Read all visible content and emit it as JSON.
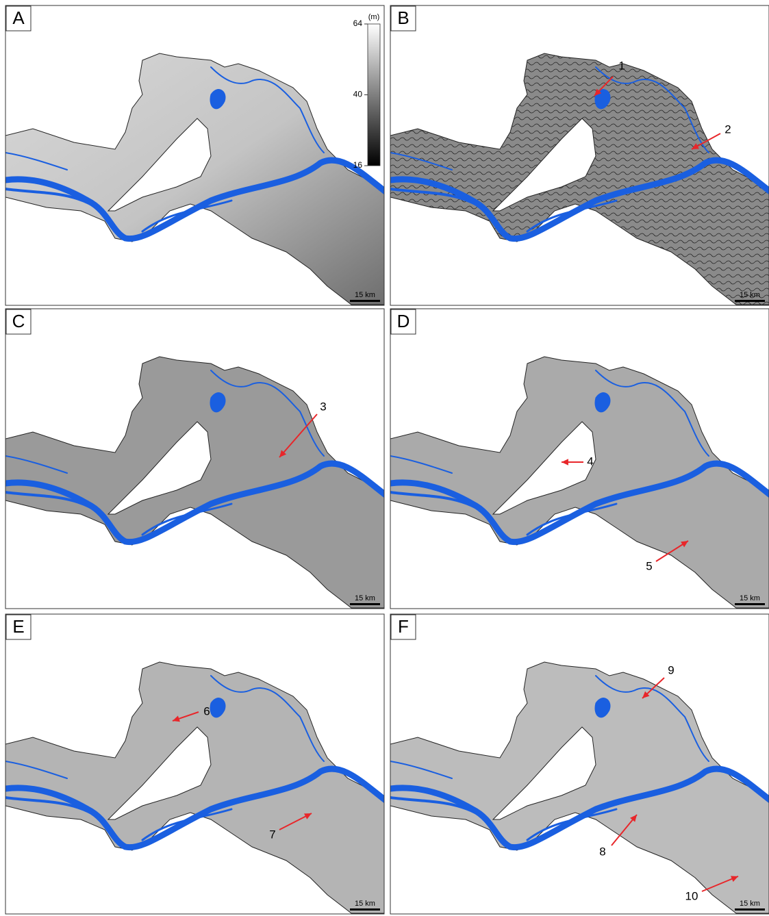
{
  "panels": [
    {
      "label": "A",
      "scale_bar": "15 km",
      "annotations": []
    },
    {
      "label": "B",
      "scale_bar": "15 km",
      "annotations": [
        {
          "label": "1"
        },
        {
          "label": "2"
        }
      ]
    },
    {
      "label": "C",
      "scale_bar": "15 km",
      "annotations": [
        {
          "label": "3"
        }
      ]
    },
    {
      "label": "D",
      "scale_bar": "15 km",
      "annotations": [
        {
          "label": "4"
        },
        {
          "label": "5"
        }
      ]
    },
    {
      "label": "E",
      "scale_bar": "15 km",
      "annotations": [
        {
          "label": "6"
        },
        {
          "label": "7"
        }
      ]
    },
    {
      "label": "F",
      "scale_bar": "15 km",
      "annotations": [
        {
          "label": "9"
        },
        {
          "label": "8"
        },
        {
          "label": "10"
        }
      ]
    }
  ],
  "legend": {
    "unit": "(m)",
    "lim": [
      16,
      64
    ],
    "ticks": [
      64,
      40,
      16
    ]
  }
}
